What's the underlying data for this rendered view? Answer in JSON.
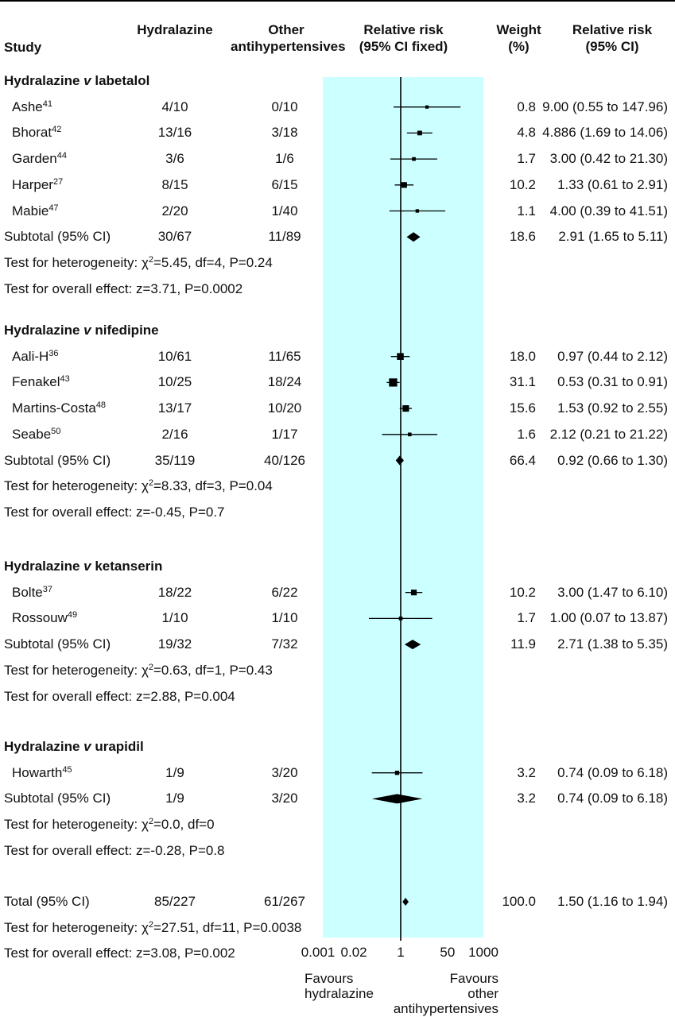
{
  "header": {
    "study": "Study",
    "hydralazine": "Hydralazine",
    "other": [
      "Other",
      "antihypertensives"
    ],
    "rr_plot": [
      "Relative risk",
      "(95% CI fixed)"
    ],
    "weight": [
      "Weight",
      "(%)"
    ],
    "rr_text": [
      "Relative risk",
      "(95% CI)"
    ]
  },
  "footer": {
    "favours_left": [
      "Favours",
      "hydralazine"
    ],
    "favours_right": [
      "Favours",
      "other",
      "antihypertensives"
    ]
  },
  "colors": {
    "band": "#ccffff",
    "ink": "#000000"
  },
  "chart_data": {
    "type": "forest",
    "scale": "log",
    "xlim": [
      0.001,
      1000
    ],
    "ticks": [
      {
        "v": 0.001,
        "label": "0.001"
      },
      {
        "v": 0.02,
        "label": "0.02"
      },
      {
        "v": 1,
        "label": "1"
      },
      {
        "v": 50,
        "label": "50"
      },
      {
        "v": 1000,
        "label": "1000"
      }
    ],
    "groups": [
      {
        "title_pre": "Hydralazine ",
        "title_v": "v",
        "title_post": " labetalol",
        "studies": [
          {
            "name": "Ashe",
            "ref": "41",
            "hyd": "4/10",
            "oth": "0/10",
            "rr": 9.0,
            "lo": 0.55,
            "hi": 147.96,
            "weight": "0.8",
            "rr_text": "9.00 (0.55 to 147.96)"
          },
          {
            "name": "Bhorat",
            "ref": "42",
            "hyd": "13/16",
            "oth": "3/18",
            "rr": 4.886,
            "lo": 1.69,
            "hi": 14.06,
            "weight": "4.8",
            "rr_text": "4.886 (1.69 to 14.06)"
          },
          {
            "name": "Garden",
            "ref": "44",
            "hyd": "3/6",
            "oth": "1/6",
            "rr": 3.0,
            "lo": 0.42,
            "hi": 21.3,
            "weight": "1.7",
            "rr_text": "3.00 (0.42 to 21.30)"
          },
          {
            "name": "Harper",
            "ref": "27",
            "hyd": "8/15",
            "oth": "6/15",
            "rr": 1.33,
            "lo": 0.61,
            "hi": 2.91,
            "weight": "10.2",
            "rr_text": "1.33 (0.61 to 2.91)"
          },
          {
            "name": "Mabie",
            "ref": "47",
            "hyd": "2/20",
            "oth": "1/40",
            "rr": 4.0,
            "lo": 0.39,
            "hi": 41.51,
            "weight": "1.1",
            "rr_text": "4.00 (0.39 to 41.51)"
          }
        ],
        "subtotal": {
          "label": "Subtotal (95% CI)",
          "hyd": "30/67",
          "oth": "11/89",
          "rr": 2.91,
          "lo": 1.65,
          "hi": 5.11,
          "weight": "18.6",
          "rr_text": "2.91 (1.65 to 5.11)"
        },
        "het_pre": "Test for heterogeneity: ",
        "het_post": "=5.45, df=4, P=0.24",
        "overall": "Test for overall effect: z=3.71, P=0.0002"
      },
      {
        "title_pre": "Hydralazine ",
        "title_v": "v",
        "title_post": " nifedipine",
        "studies": [
          {
            "name": "Aali-H",
            "ref": "36",
            "hyd": "10/61",
            "oth": "11/65",
            "rr": 0.97,
            "lo": 0.44,
            "hi": 2.12,
            "weight": "18.0",
            "rr_text": "0.97 (0.44 to 2.12)"
          },
          {
            "name": "Fenakel",
            "ref": "43",
            "hyd": "10/25",
            "oth": "18/24",
            "rr": 0.53,
            "lo": 0.31,
            "hi": 0.91,
            "weight": "31.1",
            "rr_text": "0.53 (0.31 to 0.91)"
          },
          {
            "name": "Martins-Costa",
            "ref": "48",
            "hyd": "13/17",
            "oth": "10/20",
            "rr": 1.53,
            "lo": 0.92,
            "hi": 2.55,
            "weight": "15.6",
            "rr_text": "1.53 (0.92 to 2.55)"
          },
          {
            "name": "Seabe",
            "ref": "50",
            "hyd": "2/16",
            "oth": "1/17",
            "rr": 2.12,
            "lo": 0.21,
            "hi": 21.22,
            "weight": "1.6",
            "rr_text": "2.12 (0.21 to 21.22)"
          }
        ],
        "subtotal": {
          "label": "Subtotal (95% CI)",
          "hyd": "35/119",
          "oth": "40/126",
          "rr": 0.92,
          "lo": 0.66,
          "hi": 1.3,
          "weight": "66.4",
          "rr_text": "0.92 (0.66 to 1.30)"
        },
        "het_pre": "Test for heterogeneity: ",
        "het_post": "=8.33, df=3, P=0.04",
        "overall": "Test for overall effect: z=-0.45, P=0.7"
      },
      {
        "title_pre": "Hydralazine ",
        "title_v": "v",
        "title_post": " ketanserin",
        "studies": [
          {
            "name": "Bolte",
            "ref": "37",
            "hyd": "18/22",
            "oth": "6/22",
            "rr": 3.0,
            "lo": 1.47,
            "hi": 6.1,
            "weight": "10.2",
            "rr_text": "3.00 (1.47 to 6.10)"
          },
          {
            "name": "Rossouw",
            "ref": "49",
            "hyd": "1/10",
            "oth": "1/10",
            "rr": 1.0,
            "lo": 0.07,
            "hi": 13.87,
            "weight": "1.7",
            "rr_text": "1.00 (0.07 to 13.87)"
          }
        ],
        "subtotal": {
          "label": "Subtotal (95% CI)",
          "hyd": "19/32",
          "oth": "7/32",
          "rr": 2.71,
          "lo": 1.38,
          "hi": 5.35,
          "weight": "11.9",
          "rr_text": "2.71 (1.38 to 5.35)"
        },
        "het_pre": "Test for heterogeneity: ",
        "het_post": "=0.63, df=1, P=0.43",
        "overall": "Test for overall effect: z=2.88, P=0.004"
      },
      {
        "title_pre": "Hydralazine ",
        "title_v": "v",
        "title_post": " urapidil",
        "studies": [
          {
            "name": "Howarth",
            "ref": "45",
            "hyd": "1/9",
            "oth": "3/20",
            "rr": 0.74,
            "lo": 0.09,
            "hi": 6.18,
            "weight": "3.2",
            "rr_text": "0.74 (0.09 to 6.18)"
          }
        ],
        "subtotal": {
          "label": "Subtotal (95% CI)",
          "hyd": "1/9",
          "oth": "3/20",
          "rr": 0.74,
          "lo": 0.09,
          "hi": 6.18,
          "weight": "3.2",
          "rr_text": "0.74 (0.09 to 6.18)"
        },
        "het_pre": "Test for heterogeneity: ",
        "het_post": "=0.0, df=0",
        "overall": "Test for overall effect: z=-0.28, P=0.8"
      }
    ],
    "total": {
      "label": "Total (95% CI)",
      "hyd": "85/227",
      "oth": "61/267",
      "rr": 1.5,
      "lo": 1.16,
      "hi": 1.94,
      "weight": "100.0",
      "rr_text": "1.50 (1.16 to 1.94)",
      "het_pre": "Test for heterogeneity: ",
      "het_post": "=27.51, df=11, P=0.0038",
      "overall": "Test for overall effect: z=3.08, P=0.002"
    }
  }
}
